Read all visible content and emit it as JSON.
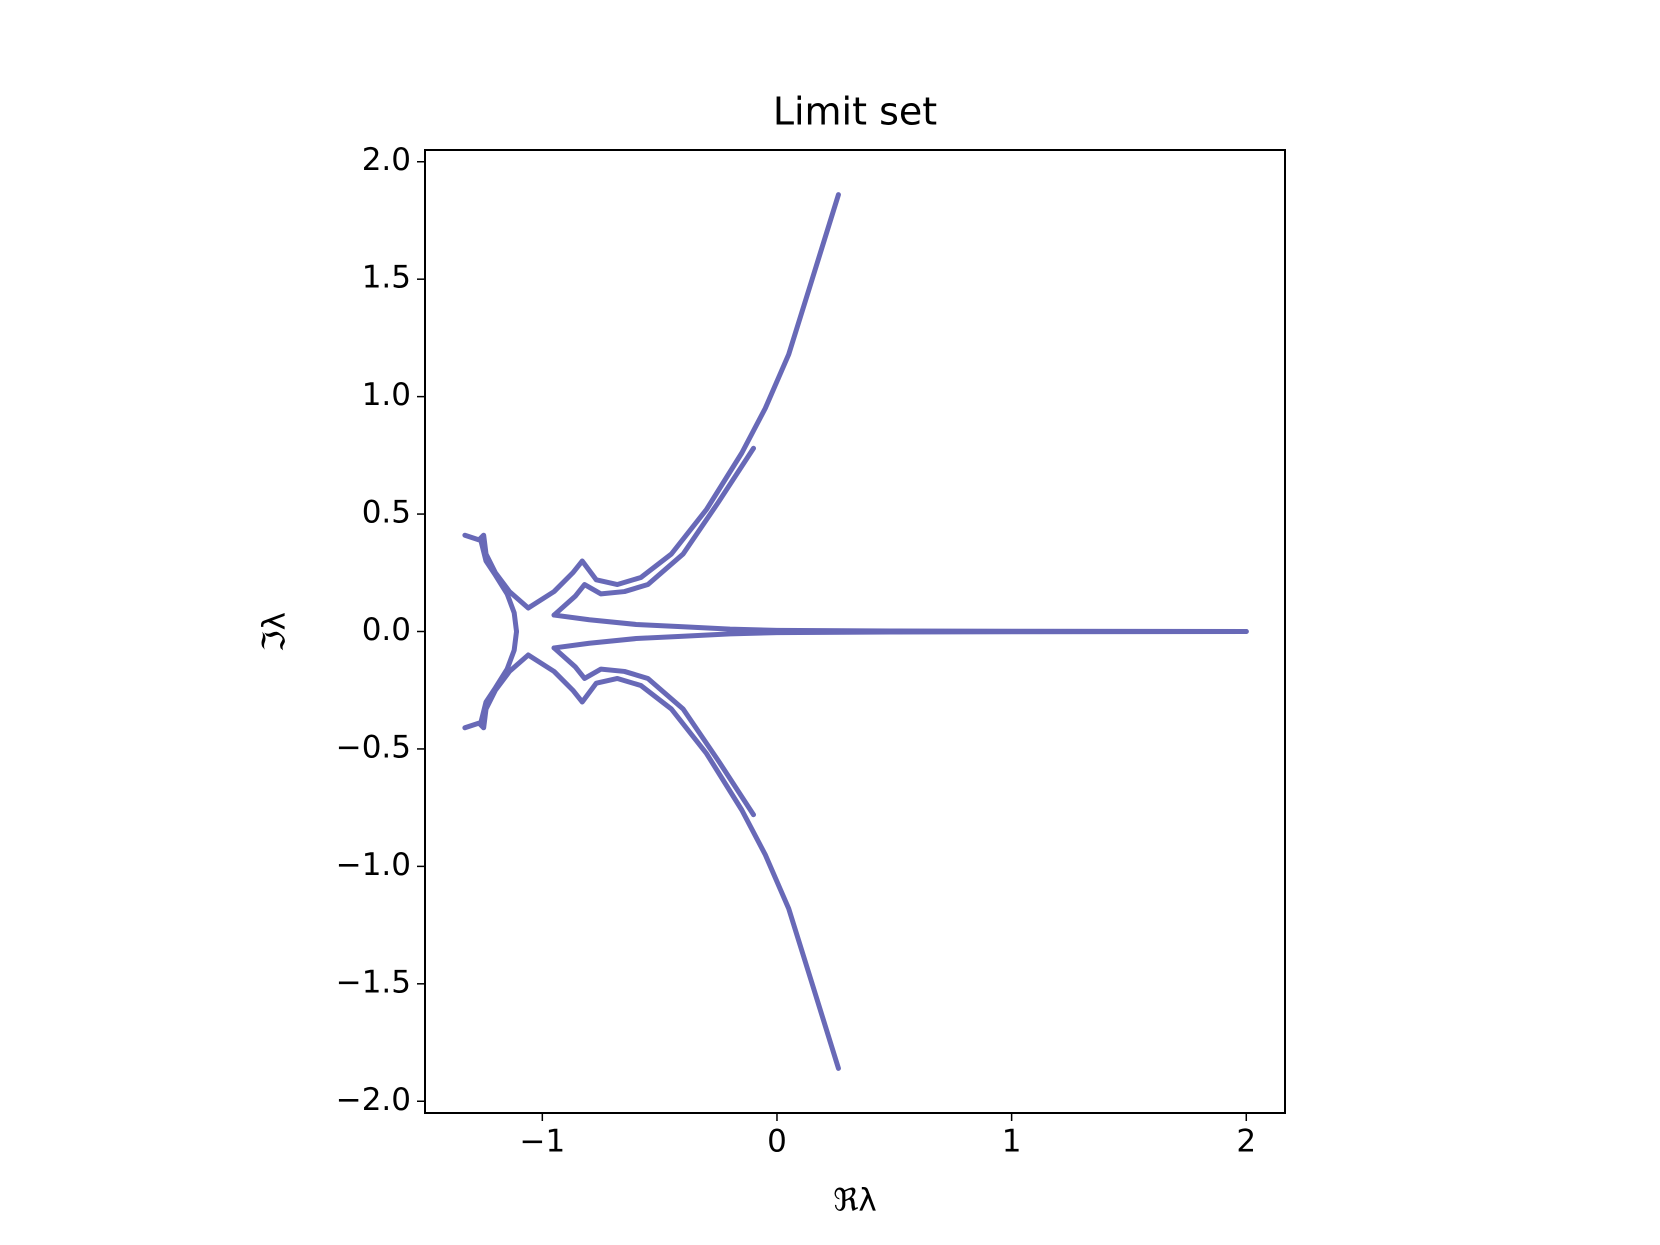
{
  "chart_data": {
    "type": "line",
    "title": "Limit set",
    "xlabel": "ℜλ",
    "ylabel": "ℑλ",
    "xlim": [
      -1.5,
      2.165
    ],
    "ylim": [
      -2.05,
      2.05
    ],
    "xticks": [
      {
        "value": -1,
        "label": "−1"
      },
      0,
      1,
      2
    ],
    "yticks": [
      {
        "value": -2,
        "label": "−2.0"
      },
      {
        "value": -1.5,
        "label": "−1.5"
      },
      {
        "value": -1,
        "label": "−1.0"
      },
      {
        "value": -0.5,
        "label": "−0.5"
      },
      {
        "value": 0,
        "label": "0.0"
      },
      0.5,
      {
        "value": 1,
        "label": "1.0"
      },
      1.5,
      {
        "value": 2,
        "label": "2.0"
      }
    ],
    "grid": false,
    "series": [
      {
        "color": "#6869b7",
        "x": [
          0.262,
          0.15,
          0.05,
          -0.05,
          -0.15,
          -0.3,
          -0.45,
          -0.58,
          -0.68,
          -0.77,
          -0.83,
          -0.87,
          -0.95,
          -1.06,
          -1.14,
          -1.2,
          -1.24,
          -1.25,
          -1.27,
          -1.33
        ],
        "values": [
          1.86,
          1.5,
          1.18,
          0.95,
          0.76,
          0.52,
          0.33,
          0.23,
          0.2,
          0.22,
          0.3,
          0.25,
          0.17,
          0.1,
          0.17,
          0.25,
          0.33,
          0.41,
          0.39,
          0.41
        ]
      },
      {
        "color": "#6869b7",
        "x": [
          -0.1,
          -0.25,
          -0.4,
          -0.55,
          -0.65,
          -0.75,
          -0.82,
          -0.86,
          -0.95
        ],
        "values": [
          0.78,
          0.55,
          0.33,
          0.2,
          0.17,
          0.16,
          0.2,
          0.15,
          0.07
        ]
      },
      {
        "color": "#6869b7",
        "x": [
          -0.95,
          -0.8,
          -0.6,
          -0.4,
          -0.2,
          0,
          0.5,
          1,
          2
        ],
        "values": [
          0.07,
          0.05,
          0.03,
          0.02,
          0.01,
          0.005,
          0.002,
          0.001,
          0
        ]
      },
      {
        "color": "#6869b7",
        "x": [
          -1.26,
          -1.24,
          -1.2,
          -1.15,
          -1.12,
          -1.11
        ],
        "values": [
          0.38,
          0.3,
          0.24,
          0.16,
          0.08,
          0
        ]
      },
      {
        "color": "#6869b7",
        "x": [
          0.262,
          0.15,
          0.05,
          -0.05,
          -0.15,
          -0.3,
          -0.45,
          -0.58,
          -0.68,
          -0.77,
          -0.83,
          -0.87,
          -0.95,
          -1.06,
          -1.14,
          -1.2,
          -1.24,
          -1.25,
          -1.27,
          -1.33
        ],
        "values": [
          -1.86,
          -1.5,
          -1.18,
          -0.95,
          -0.76,
          -0.52,
          -0.33,
          -0.23,
          -0.2,
          -0.22,
          -0.3,
          -0.25,
          -0.17,
          -0.1,
          -0.17,
          -0.25,
          -0.33,
          -0.41,
          -0.39,
          -0.41
        ]
      },
      {
        "color": "#6869b7",
        "x": [
          -0.1,
          -0.25,
          -0.4,
          -0.55,
          -0.65,
          -0.75,
          -0.82,
          -0.86,
          -0.95
        ],
        "values": [
          -0.78,
          -0.55,
          -0.33,
          -0.2,
          -0.17,
          -0.16,
          -0.2,
          -0.15,
          -0.07
        ]
      },
      {
        "color": "#6869b7",
        "x": [
          -0.95,
          -0.8,
          -0.6,
          -0.4,
          -0.2,
          0,
          0.5,
          1,
          2
        ],
        "values": [
          -0.07,
          -0.05,
          -0.03,
          -0.02,
          -0.01,
          -0.005,
          -0.002,
          -0.001,
          0
        ]
      },
      {
        "color": "#6869b7",
        "x": [
          -1.26,
          -1.24,
          -1.2,
          -1.15,
          -1.12,
          -1.11
        ],
        "values": [
          -0.38,
          -0.3,
          -0.24,
          -0.16,
          -0.08,
          0
        ]
      }
    ]
  }
}
